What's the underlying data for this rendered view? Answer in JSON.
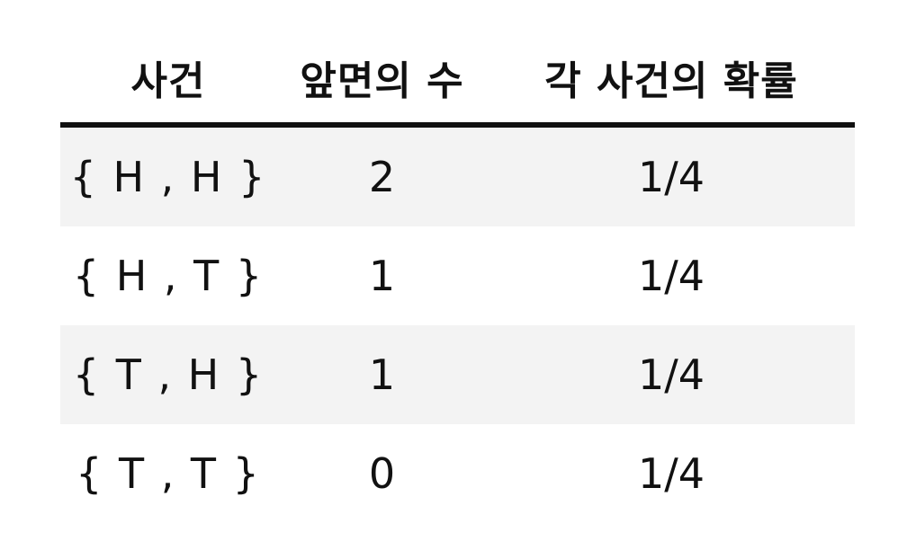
{
  "table": {
    "headers": [
      "사건",
      "앞면의 수",
      "각 사건의 확률"
    ],
    "rows": [
      [
        "{ H , H }",
        "2",
        "1/4"
      ],
      [
        "{ H , T }",
        "1",
        "1/4"
      ],
      [
        "{ T , H }",
        "1",
        "1/4"
      ],
      [
        "{ T , T }",
        "0",
        "1/4"
      ]
    ]
  },
  "colors": {
    "text": "#111111",
    "shaded_row": "#f3f3f3",
    "rule": "#111111"
  }
}
